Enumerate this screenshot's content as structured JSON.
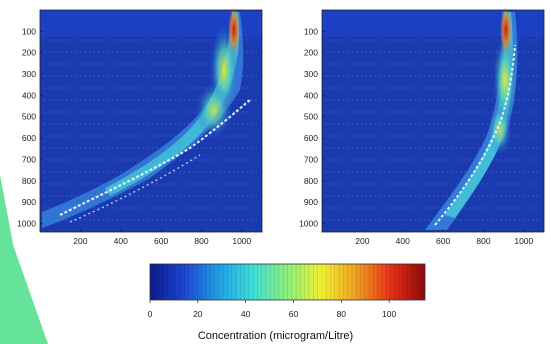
{
  "chart_data": [
    {
      "type": "heatmap",
      "title": "",
      "xlabel": "",
      "ylabel": "",
      "x_ticks": [
        200,
        400,
        600,
        800,
        1000
      ],
      "y_ticks": [
        100,
        200,
        300,
        400,
        500,
        600,
        700,
        800,
        900,
        1000
      ],
      "xlim": [
        0,
        1100
      ],
      "ylim": [
        1040,
        0
      ],
      "grid": false,
      "plume_centerline": [
        [
          920,
          0
        ],
        [
          910,
          100
        ],
        [
          880,
          200
        ],
        [
          850,
          300
        ],
        [
          800,
          400
        ],
        [
          750,
          500
        ],
        [
          700,
          600
        ],
        [
          600,
          700
        ],
        [
          450,
          800
        ],
        [
          300,
          880
        ],
        [
          100,
          950
        ]
      ],
      "peak_concentration_region": {
        "x": [
          900,
          950
        ],
        "y": [
          0,
          150
        ],
        "value": 110
      }
    },
    {
      "type": "heatmap",
      "title": "",
      "xlabel": "",
      "ylabel": "",
      "x_ticks": [
        200,
        400,
        600,
        800,
        1000
      ],
      "y_ticks": [
        100,
        200,
        300,
        400,
        500,
        600,
        700,
        800,
        900,
        1000
      ],
      "xlim": [
        0,
        1100
      ],
      "ylim": [
        1040,
        0
      ],
      "grid": false,
      "plume_centerline": [
        [
          920,
          0
        ],
        [
          915,
          100
        ],
        [
          905,
          200
        ],
        [
          900,
          300
        ],
        [
          890,
          400
        ],
        [
          860,
          500
        ],
        [
          820,
          600
        ],
        [
          750,
          700
        ],
        [
          650,
          800
        ],
        [
          550,
          900
        ],
        [
          480,
          1000
        ]
      ],
      "peak_concentration_region": {
        "x": [
          900,
          950
        ],
        "y": [
          0,
          150
        ],
        "value": 110
      }
    }
  ],
  "colorbar": {
    "ticks": [
      0,
      20,
      40,
      60,
      80,
      100
    ],
    "range": [
      0,
      115
    ],
    "label": "Concentration (microgram/Litre)",
    "colors": [
      "#0a1a8c",
      "#1e46d2",
      "#1fa0e6",
      "#3ee0d8",
      "#8ef07a",
      "#f0f030",
      "#f0a020",
      "#e83018",
      "#8c0a0a"
    ]
  }
}
